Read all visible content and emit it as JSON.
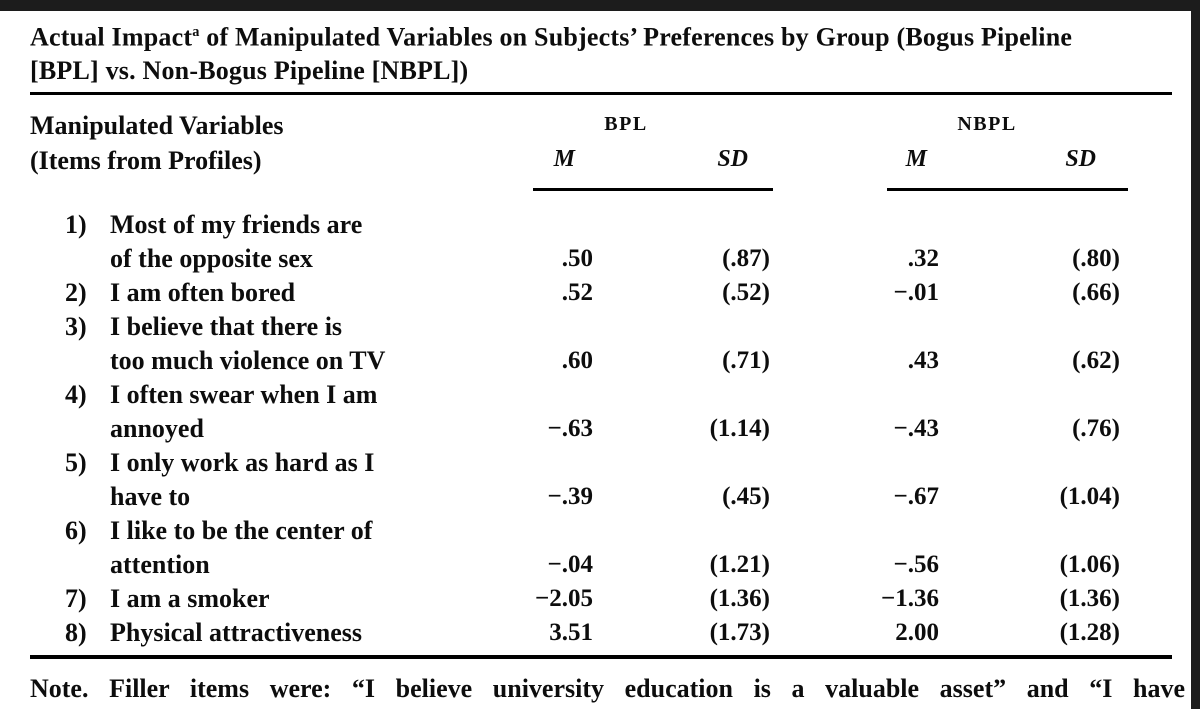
{
  "title": {
    "part1": "Actual Impact",
    "superscript": "a",
    "part2": " of Manipulated Variables on Subjects’ Preferences by Group (Bogus Pipeline",
    "line2": "[BPL] vs. Non-Bogus Pipeline [NBPL])"
  },
  "header": {
    "stub_line1": "Manipulated Variables",
    "stub_line2": "(Items from Profiles)",
    "groups": [
      {
        "label": "BPL",
        "col1": "M",
        "col2": "SD"
      },
      {
        "label": "NBPL",
        "col1": "M",
        "col2": "SD"
      }
    ]
  },
  "rows": [
    {
      "num": "1)",
      "line1": "Most of my friends are",
      "line2": "of the opposite sex",
      "bpl_m": ".50",
      "bpl_sd": "(.87)",
      "nbpl_m": ".32",
      "nbpl_sd": "(.80)"
    },
    {
      "num": "2)",
      "line1": "I am often bored",
      "bpl_m": ".52",
      "bpl_sd": "(.52)",
      "nbpl_m": "−.01",
      "nbpl_sd": "(.66)"
    },
    {
      "num": "3)",
      "line1": "I believe that there is",
      "line2": "too much violence on TV",
      "bpl_m": ".60",
      "bpl_sd": "(.71)",
      "nbpl_m": ".43",
      "nbpl_sd": "(.62)"
    },
    {
      "num": "4)",
      "line1": "I often swear when I am",
      "line2": "annoyed",
      "bpl_m": "−.63",
      "bpl_sd": "(1.14)",
      "nbpl_m": "−.43",
      "nbpl_sd": "(.76)"
    },
    {
      "num": "5)",
      "line1": "I only work as hard as I",
      "line2": "have to",
      "bpl_m": "−.39",
      "bpl_sd": "(.45)",
      "nbpl_m": "−.67",
      "nbpl_sd": "(1.04)"
    },
    {
      "num": "6)",
      "line1": "I like to be the center of",
      "line2": "attention",
      "bpl_m": "−.04",
      "bpl_sd": "(1.21)",
      "nbpl_m": "−.56",
      "nbpl_sd": "(1.06)"
    },
    {
      "num": "7)",
      "line1": "I am a smoker",
      "bpl_m": "−2.05",
      "bpl_sd": "(1.36)",
      "nbpl_m": "−1.36",
      "nbpl_sd": "(1.36)"
    },
    {
      "num": "8)",
      "line1": "Physical attractiveness",
      "bpl_m": "3.51",
      "bpl_sd": "(1.73)",
      "nbpl_m": "2.00",
      "nbpl_sd": "(1.28)"
    }
  ],
  "note": "Note. Filler items were: “I believe university education is a valuable asset” and “I have"
}
